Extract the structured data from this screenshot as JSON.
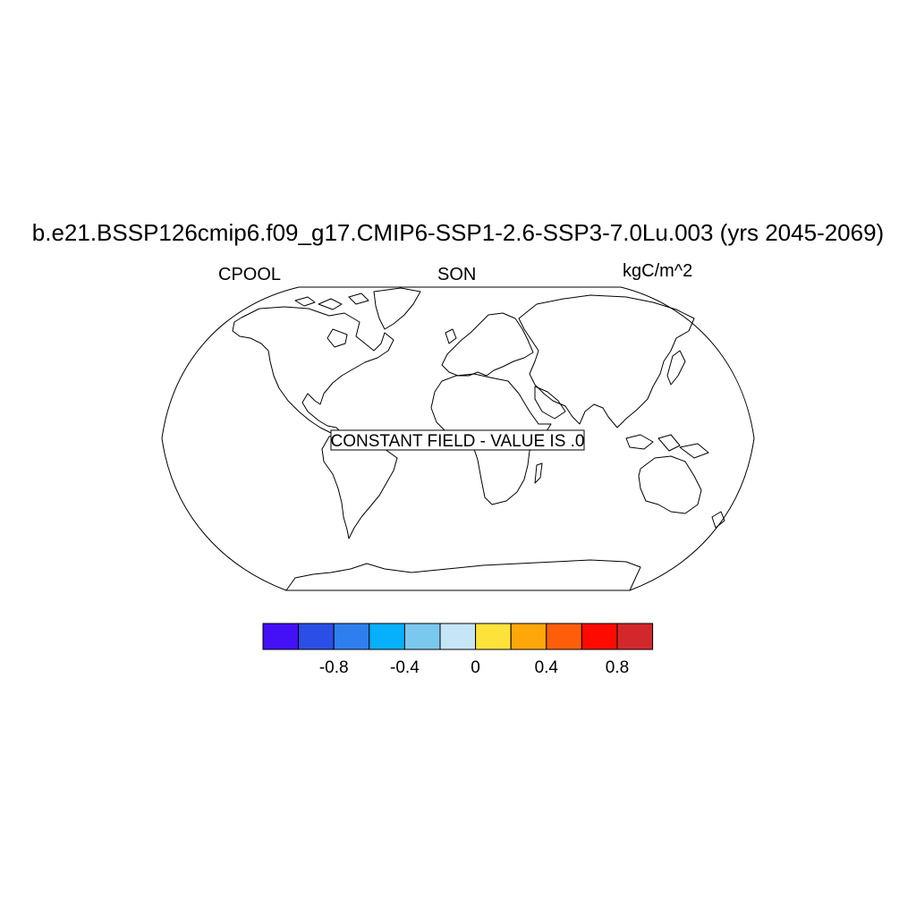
{
  "title": "b.e21.BSSP126cmip6.f09_g17.CMIP6-SSP1-2.6-SSP3-7.0Lu.003 (yrs 2045-2069)",
  "left_string": "CPOOL",
  "center_string": "SON",
  "right_string": "kgC/m^2",
  "map": {
    "projection": "robinson",
    "message": "CONSTANT FIELD - VALUE IS .0"
  },
  "colorbar": {
    "colors": [
      "#4410f5",
      "#2b4ee6",
      "#2f7ef0",
      "#06b0fb",
      "#7bc8ef",
      "#c6e6f8",
      "#fde23a",
      "#fea70a",
      "#fe5e0a",
      "#fd0b00",
      "#d3282b"
    ],
    "tick_labels": [
      "-0.8",
      "-0.4",
      "0",
      "0.4",
      "0.8"
    ]
  }
}
